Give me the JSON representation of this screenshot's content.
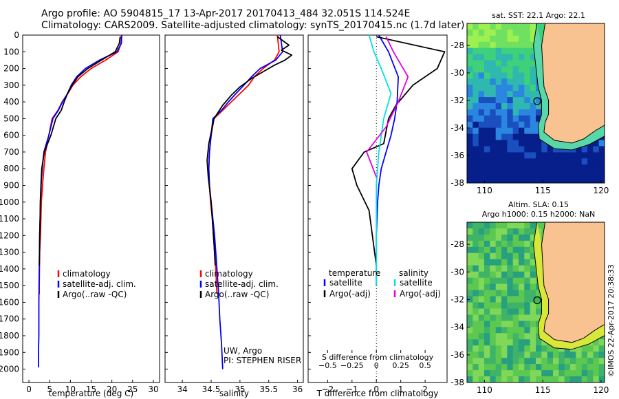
{
  "title": {
    "line1": "Argo profile: AO 5904815_17 13-Apr-2017 20170413_484 32.051S 114.524E",
    "line2": "Climatology: CARS2009. Satellite-adjusted climatology: synTS_20170415.nc (1.7d later)"
  },
  "colors": {
    "climatology": "#ff0000",
    "satellite": "#0000ff",
    "argo": "#000000",
    "sal_satellite": "#00e0e0",
    "sal_argo": "#e000e0",
    "land": "#f9c291"
  },
  "depth_axis": {
    "ylim": [
      0,
      2080
    ],
    "ticks": [
      0,
      100,
      200,
      300,
      400,
      500,
      600,
      700,
      800,
      900,
      1000,
      1100,
      1200,
      1300,
      1400,
      1500,
      1600,
      1700,
      1800,
      1900,
      2000
    ],
    "tick_labels": [
      "0",
      "100",
      "200",
      "300",
      "400",
      "500",
      "600",
      "700",
      "800",
      "900",
      "1000",
      "1100",
      "1200",
      "1300",
      "1400",
      "1500",
      "1600",
      "1700",
      "1800",
      "1900",
      "2000"
    ]
  },
  "chart_data": [
    {
      "type": "line",
      "id": "temperature",
      "xlabel": "temperature (deg C)",
      "xlim": [
        -1.5,
        31.5
      ],
      "xticks": [
        0,
        5,
        10,
        15,
        20,
        25,
        30
      ],
      "xtick_labels": [
        "0",
        "5",
        "10",
        "15",
        "20",
        "25",
        "30"
      ],
      "legend": {
        "placement": "lower-center",
        "entries": [
          "climatology",
          "satellite-adj. clim.",
          "Argo(..raw -QC)"
        ]
      },
      "series": [
        {
          "name": "climatology",
          "color": "#ff0000",
          "x": [
            22.3,
            22.2,
            21.5,
            18.5,
            15.0,
            12.5,
            10.6,
            9.4,
            8.0,
            7.0,
            5.6,
            4.8,
            4.0,
            3.6,
            3.3,
            3.0,
            2.9,
            2.8,
            2.6,
            2.55,
            2.5,
            2.5
          ],
          "y": [
            0,
            50,
            100,
            150,
            200,
            250,
            300,
            350,
            400,
            450,
            500,
            600,
            700,
            800,
            900,
            1000,
            1100,
            1200,
            1300,
            1400,
            1500,
            1550
          ]
        },
        {
          "name": "satellite-adj. clim.",
          "color": "#0000ff",
          "x": [
            22.4,
            22.3,
            21.2,
            17.0,
            13.6,
            11.5,
            10.2,
            9.3,
            8.1,
            7.1,
            5.8,
            4.8,
            3.6,
            3.2,
            2.95,
            2.8,
            2.7,
            2.6,
            2.55,
            2.5,
            2.45,
            2.4,
            2.4,
            2.3,
            2.3
          ],
          "y": [
            0,
            50,
            100,
            150,
            200,
            250,
            300,
            350,
            400,
            450,
            500,
            600,
            700,
            800,
            900,
            1000,
            1100,
            1200,
            1300,
            1400,
            1500,
            1600,
            1800,
            1900,
            1990
          ]
        },
        {
          "name": "Argo(..raw -QC)",
          "color": "#000000",
          "x": [
            22.0,
            21.8,
            20.8,
            17.5,
            14.2,
            11.8,
            10.4,
            9.3,
            8.5,
            7.8,
            6.5,
            5.3,
            3.7,
            3.1,
            2.9,
            2.75,
            2.7,
            2.6,
            2.55,
            2.5
          ],
          "y": [
            10,
            50,
            100,
            150,
            200,
            250,
            300,
            350,
            400,
            450,
            500,
            600,
            700,
            800,
            900,
            1000,
            1100,
            1200,
            1300,
            1380
          ]
        }
      ]
    },
    {
      "type": "line",
      "id": "salinity",
      "xlabel": "salinity",
      "xlim": [
        33.7,
        36.1
      ],
      "xticks": [
        34,
        34.5,
        35,
        35.5,
        36
      ],
      "xtick_labels": [
        "34",
        "34.5",
        "35",
        "35.5",
        "36"
      ],
      "legend": {
        "placement": "lower-center",
        "entries": [
          "climatology",
          "satellite-adj. clim.",
          "Argo(..raw -QC)"
        ]
      },
      "annotations": [
        "UW, Argo",
        "PI: STEPHEN RISER"
      ],
      "series": [
        {
          "name": "climatology",
          "color": "#ff0000",
          "x": [
            35.65,
            35.68,
            35.6,
            35.4,
            35.25,
            35.15,
            35.0,
            34.85,
            34.7,
            34.55,
            34.5,
            34.47,
            34.46,
            34.47,
            34.49,
            34.52,
            34.54,
            34.56,
            34.58,
            34.6
          ],
          "y": [
            0,
            100,
            150,
            200,
            250,
            300,
            350,
            400,
            450,
            500,
            600,
            700,
            800,
            900,
            1000,
            1100,
            1200,
            1300,
            1400,
            1550
          ]
        },
        {
          "name": "satellite-adj. clim.",
          "color": "#0000ff",
          "x": [
            35.7,
            35.74,
            35.62,
            35.35,
            35.2,
            35.07,
            34.93,
            34.8,
            34.68,
            34.53,
            34.5,
            34.47,
            34.46,
            34.47,
            34.5,
            34.53,
            34.56,
            34.58,
            34.6,
            34.63,
            34.65,
            34.68,
            34.7
          ],
          "y": [
            0,
            100,
            150,
            200,
            250,
            300,
            350,
            400,
            450,
            500,
            600,
            700,
            800,
            900,
            1000,
            1100,
            1200,
            1300,
            1400,
            1550,
            1700,
            1850,
            2000
          ]
        },
        {
          "name": "Argo(..raw -QC)",
          "color": "#000000",
          "x": [
            35.65,
            35.85,
            35.72,
            35.9,
            35.78,
            35.6,
            35.4,
            35.2,
            35.0,
            34.85,
            34.7,
            34.55,
            34.46,
            34.43,
            34.45,
            34.5,
            34.52,
            34.55,
            34.57
          ],
          "y": [
            10,
            60,
            90,
            120,
            150,
            180,
            220,
            260,
            310,
            360,
            420,
            500,
            650,
            750,
            850,
            1000,
            1100,
            1250,
            1380
          ]
        }
      ]
    },
    {
      "type": "line",
      "id": "difference",
      "xlabel": "T difference from climatology",
      "xlim": [
        -2.8,
        2.9
      ],
      "xticks": [
        -2,
        -1,
        0,
        1,
        2
      ],
      "xtick_labels": [
        "−2",
        "−1",
        "0",
        "1",
        "2"
      ],
      "x2label": "S difference from climatology",
      "x2lim": [
        -0.7,
        0.725
      ],
      "x2ticks": [
        -0.5,
        -0.25,
        0,
        0.25,
        0.5
      ],
      "x2tick_labels": [
        "−0.5",
        "−0.25",
        "0",
        "0.25",
        "0.5"
      ],
      "legend": {
        "placement": "lower-center",
        "headers": [
          "temperature",
          "salinity"
        ],
        "entries": [
          "satellite",
          "Argo(-adj)",
          "satellite",
          "Argo(-adj)"
        ]
      },
      "series": [
        {
          "name": "satellite",
          "color": "#0000ff",
          "x": [
            0.1,
            0.5,
            0.9,
            0.85,
            0.75,
            0.6,
            0.4,
            0.2,
            0.1,
            0.05,
            0.0,
            0.0
          ],
          "y": [
            0,
            100,
            250,
            400,
            500,
            600,
            700,
            800,
            900,
            1000,
            1200,
            1500
          ]
        },
        {
          "name": "Argo(-adj)",
          "color": "#000000",
          "x": [
            0.0,
            2.8,
            2.5,
            1.5,
            0.8,
            0.5,
            0.3,
            -0.5,
            -1.0,
            -0.8,
            -0.3,
            0.0
          ],
          "y": [
            10,
            100,
            200,
            300,
            420,
            500,
            650,
            700,
            800,
            900,
            1050,
            1380
          ]
        },
        {
          "name": "satellite",
          "color": "#00e0e0",
          "x": [
            -0.3,
            -0.1,
            0.2,
            0.6,
            0.3,
            0.1,
            0.0,
            0.0
          ],
          "y": [
            0,
            100,
            200,
            350,
            500,
            700,
            900,
            1500
          ]
        },
        {
          "name": "Argo(-adj)",
          "color": "#e000e0",
          "x": [
            0.4,
            0.7,
            1.3,
            0.9,
            0.4,
            -0.4,
            0.0
          ],
          "y": [
            10,
            100,
            250,
            400,
            550,
            700,
            850
          ]
        }
      ]
    },
    {
      "type": "heatmap",
      "id": "sst-map",
      "title": "sat. SST: 22.1  Argo: 22.1",
      "xlim": [
        108.5,
        120.3
      ],
      "ylim": [
        -38,
        -26.4
      ],
      "xticks": [
        110,
        115,
        120
      ],
      "xtick_labels": [
        "110",
        "115",
        "120"
      ],
      "yticks": [
        -28,
        -30,
        -32,
        -34,
        -36,
        -38
      ],
      "ytick_labels": [
        "-28",
        "-30",
        "-32",
        "-34",
        "-36",
        "-38"
      ],
      "float_position": {
        "lon": 114.524,
        "lat": -32.051
      }
    },
    {
      "type": "heatmap",
      "id": "sla-map",
      "title": "Altim. SLA: 0.15",
      "subtitle": "Argo h1000: 0.15 h2000: NaN",
      "xlim": [
        108.5,
        120.3
      ],
      "ylim": [
        -38,
        -26.4
      ],
      "xticks": [
        110,
        115,
        120
      ],
      "xtick_labels": [
        "110",
        "115",
        "120"
      ],
      "yticks": [
        -28,
        -30,
        -32,
        -34,
        -36,
        -38
      ],
      "ytick_labels": [
        "-28",
        "-30",
        "-32",
        "-34",
        "-36",
        "-38"
      ],
      "float_position": {
        "lon": 114.524,
        "lat": -32.051
      }
    }
  ],
  "credit": "©IMOS 22-Apr-2017 20:38:33"
}
